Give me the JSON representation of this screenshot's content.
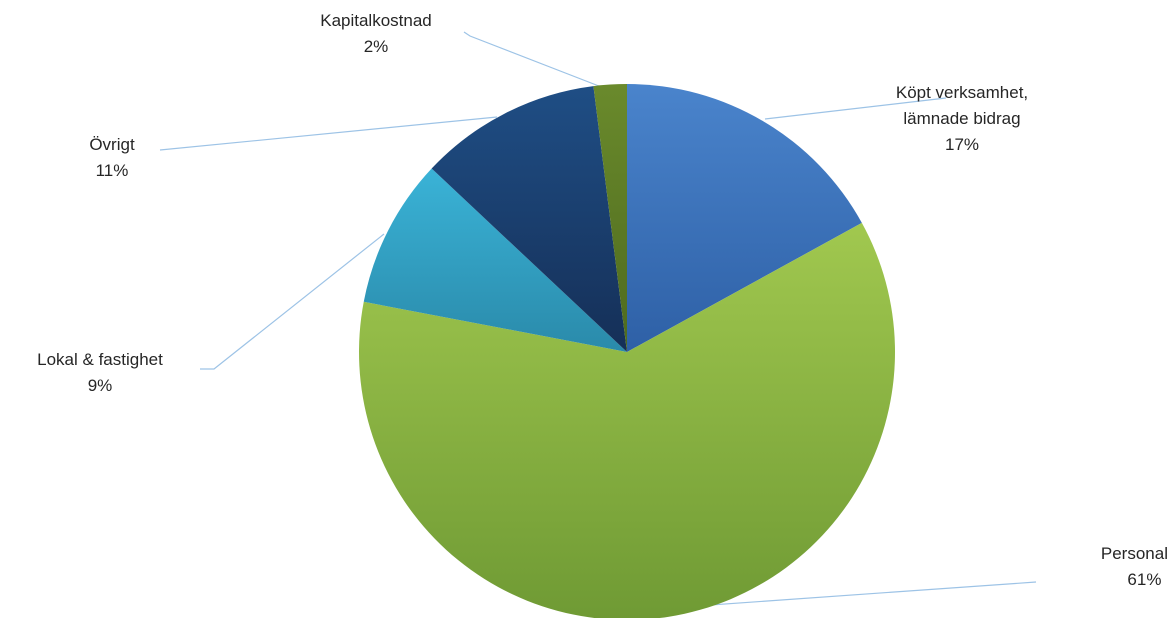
{
  "chart_data": {
    "type": "pie",
    "title": "",
    "slices": [
      {
        "name": "Köpt verksamhet, lämnade bidrag",
        "label_lines": [
          "Köpt verksamhet,",
          "lämnade bidrag"
        ],
        "percent_label": "17%",
        "value": 17,
        "color_light": "#4a84cc",
        "color_dark": "#2e60a6"
      },
      {
        "name": "Personal",
        "label_lines": [
          "Personal"
        ],
        "percent_label": "61%",
        "value": 61,
        "color_light": "#a1c84f",
        "color_dark": "#6f9a34"
      },
      {
        "name": "Lokal & fastighet",
        "label_lines": [
          "Lokal & fastighet"
        ],
        "percent_label": "9%",
        "value": 9,
        "color_light": "#3ab3d7",
        "color_dark": "#2a8aaa"
      },
      {
        "name": "Övrigt",
        "label_lines": [
          "Övrigt"
        ],
        "percent_label": "11%",
        "value": 11,
        "color_light": "#1f4e85",
        "color_dark": "#152f57"
      },
      {
        "name": "Kapitalkostnad",
        "label_lines": [
          "Kapitalkostnad"
        ],
        "percent_label": "2%",
        "value": 2,
        "color_light": "#6a8a2c",
        "color_dark": "#4e6a1e"
      }
    ],
    "leader_line_color": "#9dc3e6",
    "start_angle_deg": 0,
    "direction": "clockwise"
  }
}
